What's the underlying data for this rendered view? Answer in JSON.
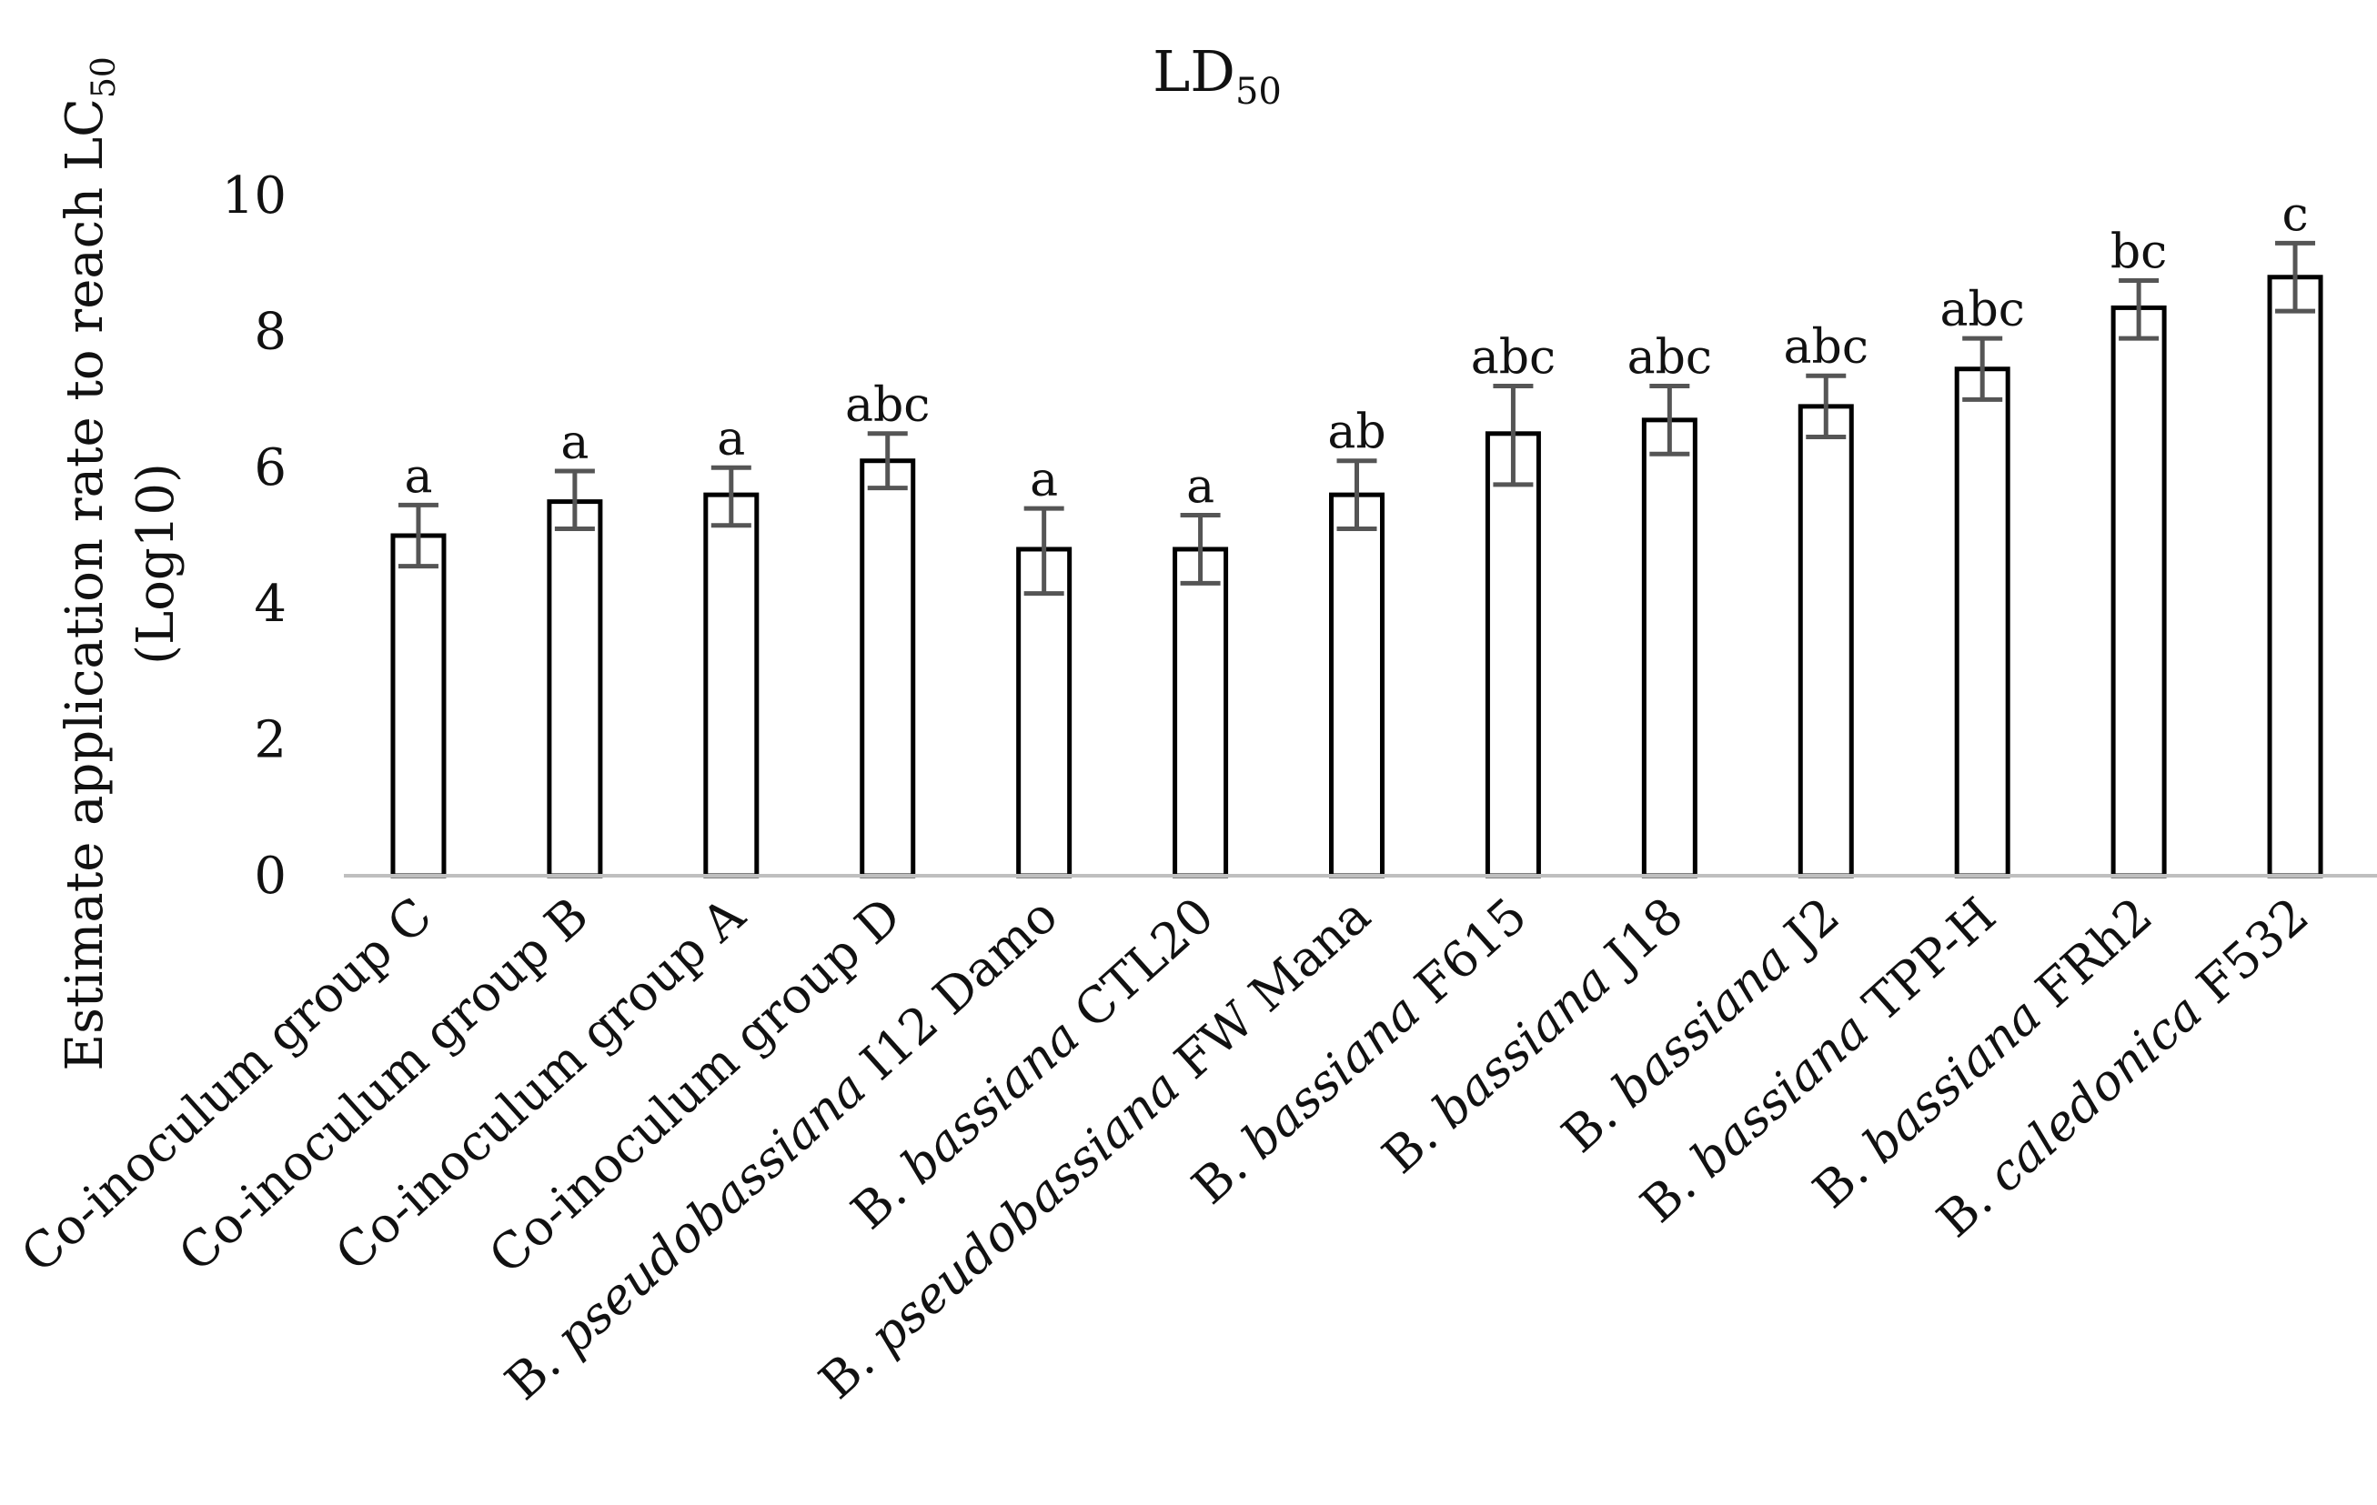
{
  "chart_data": {
    "type": "bar",
    "title": {
      "main": "LD",
      "sub": "50"
    },
    "ylabel": {
      "line1_main": "Estimate application rate to reach LC",
      "line1_sub": "50",
      "line2": "(Log10)"
    },
    "xlabel": "",
    "ylim": [
      0,
      10
    ],
    "yticks": [
      "0",
      "2",
      "4",
      "6",
      "8",
      "10"
    ],
    "grid": false,
    "categories": [
      {
        "parts": [
          {
            "t": "Co-inoculum group C",
            "i": false
          }
        ]
      },
      {
        "parts": [
          {
            "t": "Co-inoculum group B",
            "i": false
          }
        ]
      },
      {
        "parts": [
          {
            "t": "Co-inoculum group A",
            "i": false
          }
        ]
      },
      {
        "parts": [
          {
            "t": "Co-inoculum group D",
            "i": false
          }
        ]
      },
      {
        "parts": [
          {
            "t": "B. ",
            "i": false
          },
          {
            "t": "pseudobassiana",
            "i": true
          },
          {
            "t": " I12 Damo",
            "i": false
          }
        ]
      },
      {
        "parts": [
          {
            "t": "B. ",
            "i": false
          },
          {
            "t": "bassiana",
            "i": true
          },
          {
            "t": " CTL20",
            "i": false
          }
        ]
      },
      {
        "parts": [
          {
            "t": "B. ",
            "i": false
          },
          {
            "t": "pseudobassiana",
            "i": true
          },
          {
            "t": " FW Mana",
            "i": false
          }
        ]
      },
      {
        "parts": [
          {
            "t": "B. ",
            "i": false
          },
          {
            "t": "bassiana",
            "i": true
          },
          {
            "t": "  F615",
            "i": false
          }
        ]
      },
      {
        "parts": [
          {
            "t": "B. ",
            "i": false
          },
          {
            "t": "bassiana",
            "i": true
          },
          {
            "t": " J18",
            "i": false
          }
        ]
      },
      {
        "parts": [
          {
            "t": "B. ",
            "i": false
          },
          {
            "t": "bassiana",
            "i": true
          },
          {
            "t": " J2",
            "i": false
          }
        ]
      },
      {
        "parts": [
          {
            "t": "B. ",
            "i": false
          },
          {
            "t": "bassiana",
            "i": true
          },
          {
            "t": " TPP-H",
            "i": false
          }
        ]
      },
      {
        "parts": [
          {
            "t": "B. ",
            "i": false
          },
          {
            "t": "bassiana",
            "i": true
          },
          {
            "t": " FRh2",
            "i": false
          }
        ]
      },
      {
        "parts": [
          {
            "t": "B. ",
            "i": false
          },
          {
            "t": "caledonica",
            "i": true
          },
          {
            "t": " F532",
            "i": false
          }
        ]
      }
    ],
    "values": [
      5.0,
      5.5,
      5.6,
      6.1,
      4.8,
      4.8,
      5.6,
      6.5,
      6.7,
      6.9,
      7.45,
      8.35,
      8.8
    ],
    "error_lower": [
      0.45,
      0.4,
      0.45,
      0.4,
      0.65,
      0.5,
      0.5,
      0.75,
      0.5,
      0.45,
      0.45,
      0.45,
      0.5
    ],
    "error_upper": [
      0.45,
      0.45,
      0.4,
      0.4,
      0.6,
      0.5,
      0.5,
      0.7,
      0.5,
      0.45,
      0.45,
      0.4,
      0.5
    ],
    "annotations": [
      "a",
      "a",
      "a",
      "abc",
      "a",
      "a",
      "ab",
      "abc",
      "abc",
      "abc",
      "abc",
      "bc",
      "c"
    ]
  }
}
